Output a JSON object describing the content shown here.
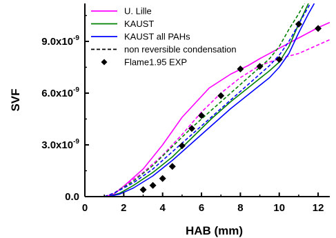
{
  "chart_data": {
    "type": "line",
    "xlabel": "HAB (mm)",
    "ylabel": "SVF",
    "xlim": [
      0,
      12.6
    ],
    "ylim": [
      0,
      1.12e-08
    ],
    "x_ticks": [
      {
        "value": 0,
        "label": "0"
      },
      {
        "value": 2,
        "label": "2"
      },
      {
        "value": 4,
        "label": "4"
      },
      {
        "value": 6,
        "label": "6"
      },
      {
        "value": 8,
        "label": "8"
      },
      {
        "value": 10,
        "label": "10"
      },
      {
        "value": 12,
        "label": "12"
      }
    ],
    "y_ticks": [
      {
        "value": 0,
        "mantissa": "0.0",
        "exponent": ""
      },
      {
        "value": 3e-09,
        "mantissa": "3.0x10",
        "exponent": "-9"
      },
      {
        "value": 6e-09,
        "mantissa": "6.0x10",
        "exponent": "-9"
      },
      {
        "value": 9e-09,
        "mantissa": "9.0x10",
        "exponent": "-9"
      }
    ],
    "grid": false,
    "legend_position": "top-left",
    "legend": [
      {
        "label": "U. Lille",
        "color": "#ff00ff",
        "style": "solid"
      },
      {
        "label": "KAUST",
        "color": "#008000",
        "style": "solid"
      },
      {
        "label": "KAUST all PAHs",
        "color": "#0000ff",
        "style": "solid"
      },
      {
        "label": "non reversible condensation",
        "color": "#000000",
        "style": "dashed"
      },
      {
        "label": "Flame1.95 EXP",
        "color": "#000000",
        "style": "diamond"
      }
    ],
    "series": [
      {
        "name": "U. Lille",
        "color": "#ff00ff",
        "style": "solid",
        "x": [
          1.0,
          1.5,
          2.0,
          3.0,
          4.0,
          5.0,
          6.4,
          7.5,
          8.4,
          9.0,
          10.0,
          11.0,
          12.0,
          12.6
        ],
        "y": [
          0,
          1.5e-10,
          6e-10,
          1.6e-09,
          3e-09,
          4.6e-09,
          6.3e-09,
          7.1e-09,
          7.6e-09,
          8e-09,
          8.6e-09,
          9.2e-09,
          9.8e-09,
          1.01e-08
        ]
      },
      {
        "name": "U. Lille (non reversible condensation)",
        "color": "#ff00ff",
        "style": "dashed",
        "x": [
          1.0,
          1.5,
          2.0,
          3.0,
          4.0,
          5.0,
          6.0,
          7.0,
          8.0,
          9.0,
          10.0,
          11.0,
          12.0,
          12.6
        ],
        "y": [
          0,
          2e-10,
          6e-10,
          1.4e-09,
          2.4e-09,
          3.6e-09,
          4.9e-09,
          6e-09,
          6.9e-09,
          7.6e-09,
          8e-09,
          8.3e-09,
          8.8e-09,
          9.1e-09
        ]
      },
      {
        "name": "KAUST",
        "color": "#008000",
        "style": "solid",
        "x": [
          1.2,
          1.8,
          2.5,
          3.5,
          4.5,
          5.5,
          6.5,
          7.5,
          8.5,
          9.5,
          10.0,
          10.5,
          11.0,
          11.5
        ],
        "y": [
          0,
          2e-10,
          6.5e-10,
          1.4e-09,
          2.3e-09,
          3.4e-09,
          4.5e-09,
          5.5e-09,
          6.4e-09,
          7.3e-09,
          7.8e-09,
          8.7e-09,
          1e-08,
          1.12e-08
        ]
      },
      {
        "name": "KAUST (non reversible condensation)",
        "color": "#008000",
        "style": "dashed",
        "x": [
          1.0,
          1.5,
          2.5,
          3.5,
          4.5,
          5.5,
          6.5,
          7.5,
          8.5,
          9.5,
          10.0,
          10.5,
          11.0,
          11.3
        ],
        "y": [
          0,
          2e-10,
          9e-10,
          1.8e-09,
          2.9e-09,
          4e-09,
          5e-09,
          6e-09,
          7e-09,
          8e-09,
          8.7e-09,
          9.7e-09,
          1.06e-08,
          1.12e-08
        ]
      },
      {
        "name": "KAUST all PAHs",
        "color": "#0000ff",
        "style": "solid",
        "x": [
          1.2,
          1.8,
          2.5,
          3.5,
          4.5,
          5.5,
          6.5,
          7.5,
          8.5,
          9.5,
          10.0,
          10.5,
          11.0,
          11.5,
          11.8
        ],
        "y": [
          0,
          1.5e-10,
          5e-10,
          1.2e-09,
          2.1e-09,
          3.1e-09,
          4.1e-09,
          5.1e-09,
          6e-09,
          6.9e-09,
          7.5e-09,
          8.3e-09,
          9.5e-09,
          1.06e-08,
          1.12e-08
        ]
      },
      {
        "name": "KAUST all PAHs (non reversible condensation)",
        "color": "#0000ff",
        "style": "dashed",
        "x": [
          1.0,
          1.5,
          2.5,
          3.5,
          4.5,
          5.5,
          6.5,
          7.5,
          8.5,
          9.5,
          10.0,
          10.5,
          11.0,
          11.6
        ],
        "y": [
          0,
          2e-10,
          8e-10,
          1.6e-09,
          2.6e-09,
          3.6e-09,
          4.6e-09,
          5.6e-09,
          6.6e-09,
          7.6e-09,
          8.2e-09,
          9e-09,
          1e-08,
          1.12e-08
        ]
      }
    ],
    "points": {
      "name": "Flame1.95 EXP",
      "color": "#000000",
      "marker": "diamond",
      "x": [
        3.0,
        3.5,
        4.0,
        4.5,
        5.0,
        5.5,
        6.0,
        7.0,
        8.0,
        9.0,
        10.0,
        11.0,
        12.0
      ],
      "y": [
        4e-10,
        6.5e-10,
        1.05e-09,
        1.75e-09,
        2.95e-09,
        3.95e-09,
        4.7e-09,
        5.85e-09,
        7.4e-09,
        7.55e-09,
        7.95e-09,
        1e-08,
        9.75e-09
      ]
    }
  }
}
